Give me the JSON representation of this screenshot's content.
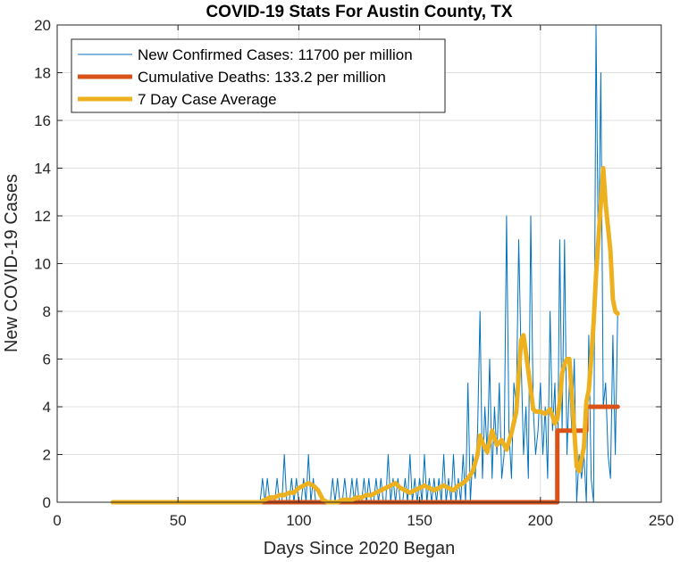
{
  "chart_data": {
    "type": "line",
    "title": "COVID-19 Stats For Austin County, TX",
    "xlabel": "Days Since 2020 Began",
    "ylabel": "New COVID-19 Cases",
    "xlim": [
      0,
      250
    ],
    "ylim": [
      0,
      20
    ],
    "xticks": [
      0,
      50,
      100,
      150,
      200,
      250
    ],
    "yticks": [
      0,
      2,
      4,
      6,
      8,
      10,
      12,
      14,
      16,
      18,
      20
    ],
    "grid": true,
    "legend_position": "top-left",
    "series": [
      {
        "name": "New Confirmed Cases: 11700 per million",
        "color": "#0072BD",
        "line_width": "thin",
        "x": [
          23,
          80,
          84,
          85,
          86,
          87,
          88,
          89,
          90,
          91,
          92,
          93,
          94,
          95,
          96,
          97,
          98,
          99,
          100,
          101,
          102,
          103,
          104,
          105,
          106,
          107,
          108,
          109,
          110,
          111,
          112,
          113,
          114,
          115,
          116,
          117,
          118,
          119,
          120,
          121,
          122,
          123,
          124,
          125,
          126,
          127,
          128,
          129,
          130,
          131,
          132,
          133,
          134,
          135,
          136,
          137,
          138,
          139,
          140,
          141,
          142,
          143,
          144,
          145,
          146,
          147,
          148,
          149,
          150,
          151,
          152,
          153,
          154,
          155,
          156,
          157,
          158,
          159,
          160,
          161,
          162,
          163,
          164,
          165,
          166,
          167,
          168,
          169,
          170,
          171,
          172,
          173,
          174,
          175,
          176,
          177,
          178,
          179,
          180,
          181,
          182,
          183,
          184,
          185,
          186,
          187,
          188,
          189,
          190,
          191,
          192,
          193,
          194,
          195,
          196,
          197,
          198,
          199,
          200,
          201,
          202,
          203,
          204,
          205,
          206,
          207,
          208,
          209,
          210,
          211,
          212,
          213,
          214,
          215,
          216,
          217,
          218,
          219,
          220,
          221,
          222,
          223,
          224,
          225,
          226,
          227,
          228,
          229,
          230,
          231,
          232
        ],
        "y": [
          0,
          0,
          0,
          1,
          0,
          1,
          0,
          0,
          0,
          1,
          0,
          0,
          2,
          0,
          0,
          1,
          0,
          1,
          0,
          0,
          1,
          0,
          2,
          0,
          1,
          0,
          0,
          0,
          0,
          0,
          0,
          0,
          1,
          0,
          1,
          0,
          0,
          1,
          0,
          0,
          1,
          0,
          1,
          0,
          0,
          1,
          0,
          1,
          0,
          0,
          1,
          0,
          1,
          0,
          0,
          2,
          0,
          1,
          0,
          1,
          0,
          0,
          1,
          0,
          2,
          0,
          1,
          0,
          1,
          0,
          2,
          0,
          1,
          0,
          1,
          0,
          1,
          0,
          2,
          0,
          1,
          0,
          2,
          0,
          1,
          0,
          2,
          0,
          5,
          0,
          2,
          1,
          3,
          8,
          1,
          4,
          2,
          6,
          1,
          4,
          2,
          5,
          1,
          2,
          12,
          3,
          1,
          5,
          4,
          11,
          6,
          2,
          4,
          1,
          12,
          4,
          2,
          3,
          5,
          2,
          4,
          1,
          8,
          3,
          5,
          0,
          11,
          3,
          11,
          2,
          5,
          3,
          6,
          0,
          2,
          1,
          2,
          0,
          7,
          1,
          0,
          20,
          10,
          18,
          4,
          5,
          2,
          1,
          7,
          2,
          8
        ]
      },
      {
        "name": "Cumulative Deaths: 133.2 per million",
        "color": "#D95319",
        "line_width": "thick",
        "x": [
          85,
          207,
          207,
          219,
          219,
          232
        ],
        "y": [
          0,
          0,
          3,
          3,
          4,
          4
        ]
      },
      {
        "name": "7 Day Case Average",
        "color": "#EDB120",
        "line_width": "thick",
        "x": [
          23,
          84,
          86,
          88,
          90,
          92,
          94,
          96,
          98,
          100,
          102,
          104,
          106,
          108,
          110,
          112,
          114,
          116,
          118,
          120,
          122,
          124,
          126,
          128,
          130,
          132,
          134,
          136,
          138,
          140,
          142,
          144,
          146,
          148,
          150,
          152,
          154,
          156,
          158,
          160,
          162,
          164,
          166,
          168,
          170,
          172,
          174,
          175,
          176,
          178,
          180,
          182,
          184,
          186,
          188,
          190,
          192,
          193,
          195,
          197,
          198,
          200,
          202,
          204,
          206,
          207,
          208,
          209,
          210,
          211,
          212,
          214,
          215,
          216,
          217,
          218,
          219,
          220,
          221,
          222,
          223,
          224,
          225,
          226,
          227,
          228,
          229,
          230,
          231,
          232
        ],
        "y": [
          0,
          0,
          0.1,
          0.2,
          0.2,
          0.3,
          0.3,
          0.4,
          0.4,
          0.6,
          0.7,
          0.8,
          0.7,
          0.5,
          0.1,
          0,
          0,
          0,
          0.1,
          0.1,
          0.1,
          0.2,
          0.2,
          0.3,
          0.3,
          0.4,
          0.5,
          0.6,
          0.7,
          0.8,
          0.6,
          0.5,
          0.4,
          0.5,
          0.6,
          0.7,
          0.6,
          0.5,
          0.6,
          0.7,
          0.6,
          0.5,
          0.7,
          0.8,
          1,
          1.3,
          2,
          2.8,
          2.5,
          2.1,
          3,
          2.4,
          2.6,
          2.2,
          2.9,
          3.8,
          6.8,
          7,
          5.5,
          3.9,
          3.8,
          3.8,
          3.7,
          3.9,
          3.3,
          3.5,
          4.2,
          5.4,
          5.8,
          6,
          6,
          3,
          1.5,
          1.3,
          1.8,
          2.3,
          4.2,
          4.7,
          6,
          7.5,
          9.5,
          11,
          12.5,
          14,
          12.5,
          11.5,
          10.5,
          8.5,
          8,
          7.9
        ]
      }
    ]
  }
}
